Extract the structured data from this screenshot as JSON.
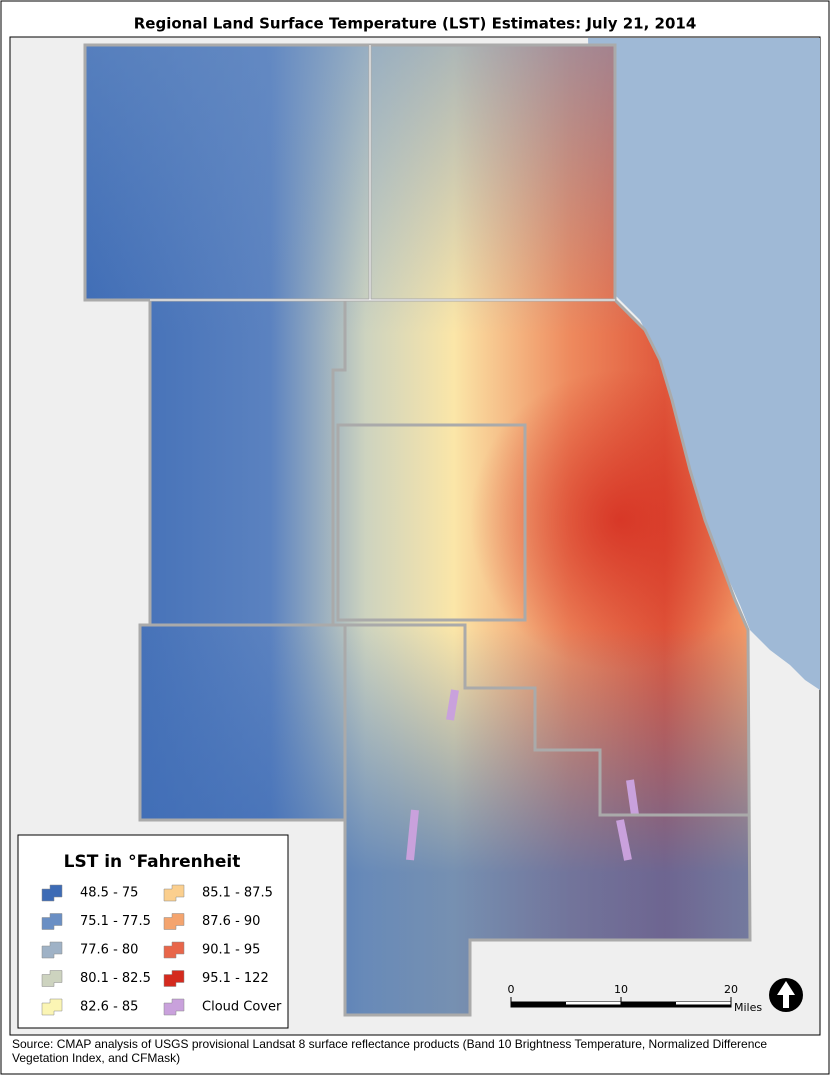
{
  "title": "Regional Land Surface Temperature (LST) Estimates: July 21, 2014",
  "legend": {
    "title": "LST in °Fahrenheit",
    "items": [
      {
        "label": "48.5 - 75",
        "color": "#3d6bb5"
      },
      {
        "label": "75.1 - 77.5",
        "color": "#6a8fc4"
      },
      {
        "label": "77.6 - 80",
        "color": "#9fb2c6"
      },
      {
        "label": "80.1 - 82.5",
        "color": "#cdd3bf"
      },
      {
        "label": "82.6 - 85",
        "color": "#fbf5b4"
      },
      {
        "label": "85.1 - 87.5",
        "color": "#fbcf8e"
      },
      {
        "label": "87.6 - 90",
        "color": "#f4a46e"
      },
      {
        "label": "90.1 - 95",
        "color": "#e8664a"
      },
      {
        "label": "95.1 - 122",
        "color": "#d42a1e"
      },
      {
        "label": "Cloud Cover",
        "color": "#c9a1dc"
      }
    ]
  },
  "scale_bar": {
    "ticks": [
      0,
      10,
      20
    ],
    "unit": "Miles"
  },
  "source": "Source: CMAP analysis of USGS provisional Landsat 8 surface reflectance products (Band 10 Brightness Temperature, Normalized Difference Vegetation Index, and CFMask)"
}
